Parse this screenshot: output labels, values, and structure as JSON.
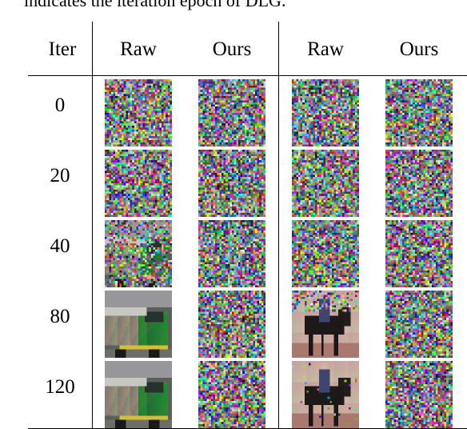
{
  "caption": "indicates the iteration epoch of DLG.",
  "table": {
    "header": {
      "iter": "Iter",
      "columns": [
        "Raw",
        "Ours",
        "Raw",
        "Ours"
      ]
    },
    "rows": [
      {
        "iter": "0",
        "cells": [
          "noise",
          "noise",
          "noise",
          "noise"
        ]
      },
      {
        "iter": "20",
        "cells": [
          "noise",
          "noise",
          "noise",
          "noise"
        ]
      },
      {
        "iter": "40",
        "cells": [
          "truck-emerging",
          "noise",
          "noise",
          "noise"
        ]
      },
      {
        "iter": "80",
        "cells": [
          "truck",
          "noise",
          "horse-rider-partial",
          "noise"
        ]
      },
      {
        "iter": "120",
        "cells": [
          "truck",
          "noise",
          "horse-rider",
          "noise"
        ]
      }
    ]
  }
}
